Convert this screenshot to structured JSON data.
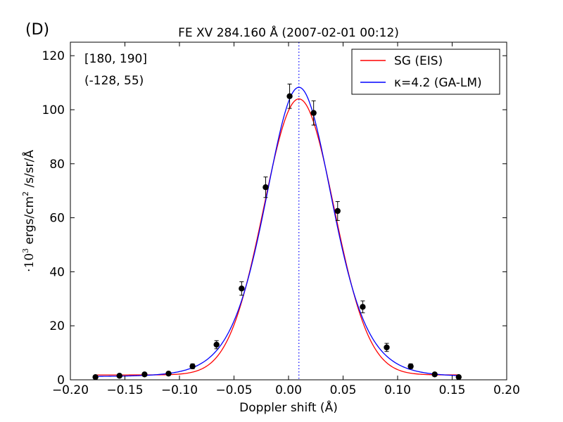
{
  "panel_label": "(D)",
  "chart_data": {
    "type": "scatter",
    "title": "FE XV 284.160 Å  (2007-02-01 00:12)",
    "xlabel": "Doppler shift (Å)",
    "ylabel_prefix": "·10",
    "ylabel_exp": "3",
    "ylabel_mid": "  ergs/cm",
    "ylabel_exp2": "2",
    "ylabel_suffix": " /s/sr/Å",
    "xlim": [
      -0.2,
      0.2
    ],
    "ylim": [
      0,
      125
    ],
    "xticks": [
      -0.2,
      -0.15,
      -0.1,
      -0.05,
      0.0,
      0.05,
      0.1,
      0.15,
      0.2
    ],
    "xtick_labels": [
      "−0.20",
      "−0.15",
      "−0.10",
      "−0.05",
      "0.00",
      "0.05",
      "0.10",
      "0.15",
      "0.20"
    ],
    "yticks": [
      0,
      20,
      40,
      60,
      80,
      100,
      120
    ],
    "ytick_labels": [
      "0",
      "20",
      "40",
      "60",
      "80",
      "100",
      "120"
    ],
    "annotations": [
      "[180, 190]",
      "(-128, 55)"
    ],
    "center_line_x": 0.0095,
    "observed": {
      "x": [
        -0.177,
        -0.155,
        -0.132,
        -0.11,
        -0.088,
        -0.066,
        -0.043,
        -0.021,
        0.001,
        0.023,
        0.045,
        0.068,
        0.09,
        0.112,
        0.134,
        0.156
      ],
      "y": [
        1.0,
        1.5,
        2.0,
        2.3,
        5.0,
        13.0,
        33.8,
        71.3,
        105.0,
        98.8,
        62.5,
        27.0,
        12.0,
        5.0,
        2.0,
        1.0
      ],
      "yerr": [
        0.5,
        0.5,
        0.6,
        0.6,
        0.9,
        1.5,
        2.5,
        3.8,
        4.5,
        4.5,
        3.5,
        2.2,
        1.5,
        0.9,
        0.6,
        0.5
      ]
    },
    "series": [
      {
        "name": "SG (EIS)",
        "color": "#ff0000",
        "model": "gaussian",
        "params": {
          "amp": 102.2,
          "center": 0.0095,
          "sigma": 0.0322,
          "bg": 1.8
        }
      },
      {
        "name": "κ=4.2 (GA-LM)",
        "color": "#0000ff",
        "model": "kappa",
        "params": {
          "amp": 107.1,
          "center": 0.0095,
          "sigma": 0.0296,
          "kappa": 4.2,
          "bg": 1.2
        }
      }
    ],
    "legend_position": "top-right",
    "grid": false
  }
}
